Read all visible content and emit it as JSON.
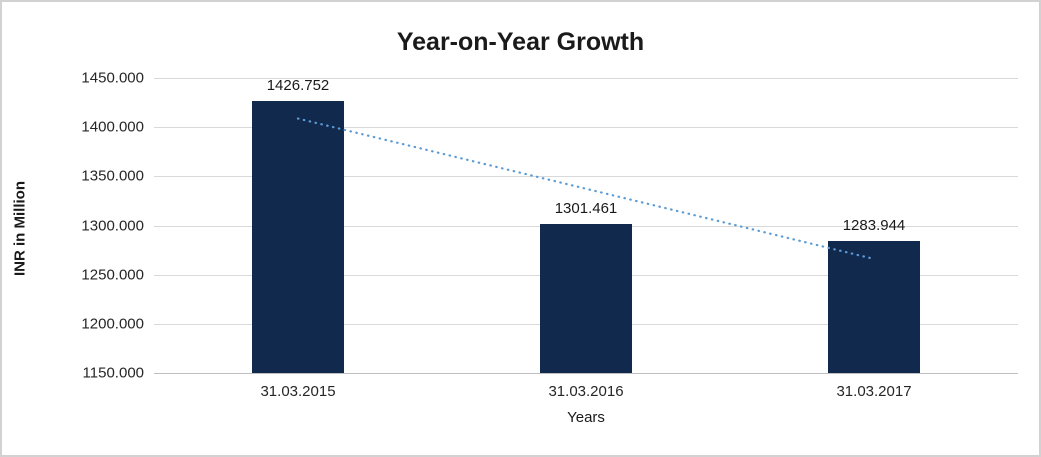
{
  "title": "Year-on-Year Growth",
  "axes": {
    "y_label": "INR in Million",
    "x_label": "Years"
  },
  "chart_data": {
    "type": "bar",
    "title": "Year-on-Year Growth",
    "xlabel": "Years",
    "ylabel": "INR in Million",
    "categories": [
      "31.03.2015",
      "31.03.2016",
      "31.03.2017"
    ],
    "values": [
      1426.752,
      1301.461,
      1283.944
    ],
    "value_labels": [
      "1426.752",
      "1301.461",
      "1283.944"
    ],
    "ylim": [
      1150,
      1450
    ],
    "ytick_step": 50,
    "ytick_labels": [
      "1150.000",
      "1200.000",
      "1250.000",
      "1300.000",
      "1350.000",
      "1400.000",
      "1450.000"
    ],
    "grid": true,
    "legend": "none",
    "bar_color": "#12294e",
    "gridline_color": "#d9d9d9",
    "axis_line_color": "#bfbfbf",
    "trendline": {
      "type": "linear",
      "style": "dotted",
      "color": "#5b9bd5"
    }
  }
}
